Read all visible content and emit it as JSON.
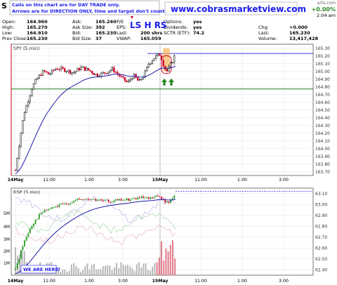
{
  "header": {
    "ticker": "S",
    "stats": [
      {
        "label": "Open:",
        "value": "164.960"
      },
      {
        "label": "High:",
        "value": "165.270"
      },
      {
        "label": "Low:",
        "value": "164.910"
      },
      {
        "label": "Prev Close:",
        "value": "165.230"
      },
      {
        "label": "Ask:",
        "value": "165.240"
      },
      {
        "label": "Ask Size:",
        "value": "392"
      },
      {
        "label": "Bid:",
        "value": "165.230"
      },
      {
        "label": "Bid Size:",
        "value": "37"
      },
      {
        "label": "P/E",
        "value": ""
      },
      {
        "label": "EPS:",
        "value": ""
      },
      {
        "label": "Last:",
        "value": "200 shrs"
      },
      {
        "label": "VWAP:",
        "value": "165.059"
      },
      {
        "label": "Options:",
        "value": "yes"
      },
      {
        "label": "Dividends:",
        "value": "yes"
      },
      {
        "label": "SCTR (ETF):",
        "value": "74.2"
      },
      {
        "label": "Chg:",
        "value": "+0.000"
      },
      {
        "label": "Last:",
        "value": "165.230"
      },
      {
        "label": "Volume:",
        "value": "13,417,428"
      }
    ],
    "pct_change": "+0.00%",
    "time": "2:04 am",
    "source_fragment": "arts.com"
  },
  "notice": {
    "line1": "Calls on this chart are for DAY TRADE only.",
    "line2": "Arrows are for DIRECTION ONLY, time and target don't count."
  },
  "watermark": "www.cobrasmarketview.com",
  "pattern_label": "LS H RS",
  "price_panel": {
    "label": "SPY (5 min)",
    "y_ticks": [
      "165.30",
      "165.20",
      "165.10",
      "165.00",
      "164.90",
      "164.80",
      "164.70",
      "164.60",
      "164.50",
      "164.40",
      "164.30",
      "164.20",
      "164.10",
      "164.00",
      "163.90",
      "163.80",
      "163.70"
    ]
  },
  "rsp_panel": {
    "label": "RSP (5 min)",
    "y_ticks": [
      "63.10",
      "63.00",
      "62.90",
      "62.80",
      "62.70",
      "62.60",
      "62.50",
      "62.40"
    ],
    "volume_ticks": [
      "5M",
      "4M",
      "3M",
      "2M",
      "1M"
    ],
    "callout": "WE ARE HERE!"
  },
  "x_axis": {
    "labels": [
      "14May",
      "11:00",
      "1:00",
      "3:00",
      "15May",
      "11:00",
      "1:00",
      "3:00"
    ]
  },
  "colors": {
    "up_candle": "#000000",
    "down_candle": "#cc0022",
    "ma_line": "#1b1ba8",
    "support_line": "#1f7a1f",
    "resistance_line": "#2020e0",
    "volume": "#b8b8b8",
    "recent_volume": "#e07a8a",
    "highlight": "#f5b55a",
    "arrow": "#1f8a1f",
    "notice_text": "#1a1aee",
    "watermark_text": "#1a1aee"
  },
  "chart_data": [
    {
      "type": "line",
      "title": "SPY (5 min)",
      "ylim": [
        163.65,
        165.35
      ],
      "x": [
        "14May",
        "11:00",
        "1:00",
        "3:00",
        "15May",
        "11:00"
      ],
      "series": [
        {
          "name": "SPY",
          "values": [
            163.75,
            164.95,
            165.05,
            165.0,
            165.1,
            165.23
          ]
        }
      ]
    },
    {
      "type": "line",
      "title": "RSP (5 min)",
      "ylim": [
        62.35,
        63.15
      ],
      "x": [
        "14May",
        "11:00",
        "1:00",
        "3:00",
        "15May",
        "11:00"
      ],
      "series": [
        {
          "name": "RSP",
          "values": [
            62.4,
            62.95,
            63.05,
            63.03,
            63.08,
            63.12
          ]
        }
      ]
    }
  ]
}
